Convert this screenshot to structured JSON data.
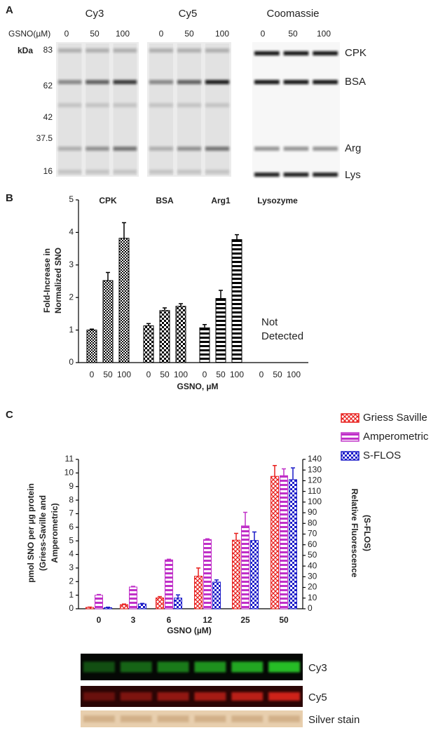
{
  "panel_a": {
    "label": "A",
    "columns": [
      "Cy3",
      "Cy5",
      "Coomassie"
    ],
    "gsno_label": "GSNO(µM)",
    "doses": [
      "0",
      "50",
      "100"
    ],
    "kda_label": "kDa",
    "markers": [
      "83",
      "62",
      "42",
      "37.5",
      "16"
    ],
    "bands": [
      "CPK",
      "BSA",
      "Arg",
      "Lys"
    ]
  },
  "chart_data": [
    {
      "type": "bar",
      "label": "B",
      "y_label": [
        "Fold-Increase in",
        "Normalized  SNO"
      ],
      "x_label": "GSNO, µM",
      "categories": [
        "0",
        "50",
        "100"
      ],
      "series": [
        {
          "name": "CPK",
          "color": "#000000",
          "pattern": "checker-small",
          "values": [
            1.0,
            2.52,
            3.82
          ],
          "errors": [
            0.03,
            0.25,
            0.48
          ]
        },
        {
          "name": "BSA",
          "color": "#000000",
          "pattern": "checker",
          "values": [
            1.13,
            1.6,
            1.73
          ],
          "errors": [
            0.07,
            0.08,
            0.08
          ]
        },
        {
          "name": "Arg1",
          "color": "#000000",
          "pattern": "h-stripes",
          "values": [
            1.07,
            1.97,
            3.78
          ],
          "errors": [
            0.1,
            0.25,
            0.15
          ]
        },
        {
          "name": "Lysozyme",
          "color": "#000000",
          "pattern": "checker",
          "values": [
            null,
            null,
            null
          ],
          "errors": [
            null,
            null,
            null
          ]
        }
      ],
      "annotation": [
        "Not",
        "Detected"
      ],
      "ylim": [
        0,
        5
      ],
      "yticks": [
        0,
        1,
        2,
        3,
        4,
        5
      ]
    },
    {
      "type": "bar",
      "label": "C",
      "y_label": [
        "pmol SNO per µg protein",
        "(Griess-Saville and",
        "Amperometric)"
      ],
      "y2_label": [
        "Relative Fluorescence",
        "(S-FLOS)"
      ],
      "x_label": "GSNO (µM)",
      "categories": [
        "0",
        "3",
        "6",
        "12",
        "25",
        "50"
      ],
      "series": [
        {
          "name": "Griess Saville",
          "color": "#e8201e",
          "pattern": "crosshatch",
          "values": [
            0.1,
            0.3,
            0.8,
            2.4,
            5.05,
            9.75
          ],
          "errors": [
            0.02,
            0.05,
            0.1,
            0.6,
            0.5,
            0.8
          ]
        },
        {
          "name": "Amperometric",
          "color": "#c030c8",
          "pattern": "h-stripes",
          "values": [
            1.0,
            1.6,
            3.6,
            5.1,
            6.1,
            9.8
          ],
          "errors": [
            0.05,
            0.05,
            0.05,
            0.05,
            1.0,
            0.5
          ]
        },
        {
          "name": "S-FLOS",
          "color": "#1a1ac8",
          "pattern": "checker",
          "axis": "y2",
          "values": [
            1,
            4.5,
            10,
            25,
            64,
            121
          ],
          "errors": [
            0.5,
            0.5,
            3,
            2,
            8,
            11
          ]
        }
      ],
      "ylim": [
        0,
        11
      ],
      "yticks": [
        0,
        1,
        2,
        3,
        4,
        5,
        6,
        7,
        8,
        9,
        10,
        11
      ],
      "y2lim": [
        0,
        140
      ],
      "y2ticks": [
        0,
        10,
        20,
        30,
        40,
        50,
        60,
        70,
        80,
        90,
        100,
        110,
        120,
        130,
        140
      ],
      "legend": "top-right"
    }
  ],
  "panel_c_blot": {
    "lanes": [
      "Cy3",
      "Cy5",
      "Silver stain"
    ]
  }
}
